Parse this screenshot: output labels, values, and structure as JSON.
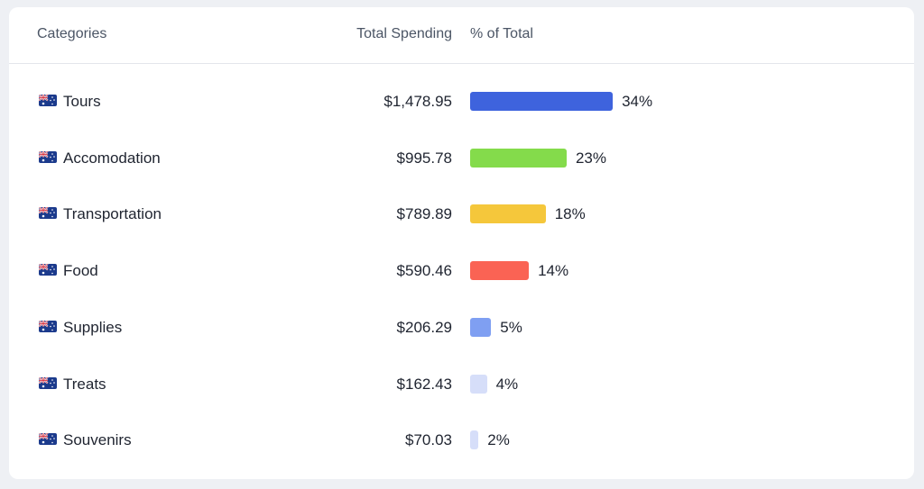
{
  "header": {
    "categories": "Categories",
    "total_spending": "Total Spending",
    "percent_of_total": "% of Total"
  },
  "flag_icon": "australia-flag-icon",
  "rows": [
    {
      "category": "Tours",
      "amount": "$1,478.95",
      "percent_label": "34%",
      "percent": 34,
      "color": "#3e63dd"
    },
    {
      "category": "Accomodation",
      "amount": "$995.78",
      "percent_label": "23%",
      "percent": 23,
      "color": "#84db4b"
    },
    {
      "category": "Transportation",
      "amount": "$789.89",
      "percent_label": "18%",
      "percent": 18,
      "color": "#f5c73b"
    },
    {
      "category": "Food",
      "amount": "$590.46",
      "percent_label": "14%",
      "percent": 14,
      "color": "#fa6354"
    },
    {
      "category": "Supplies",
      "amount": "$206.29",
      "percent_label": "5%",
      "percent": 5,
      "color": "#7f9ff2"
    },
    {
      "category": "Treats",
      "amount": "$162.43",
      "percent_label": "4%",
      "percent": 4,
      "color": "#d6def9"
    },
    {
      "category": "Souvenirs",
      "amount": "$70.03",
      "percent_label": "2%",
      "percent": 2,
      "color": "#d6def9"
    }
  ]
}
